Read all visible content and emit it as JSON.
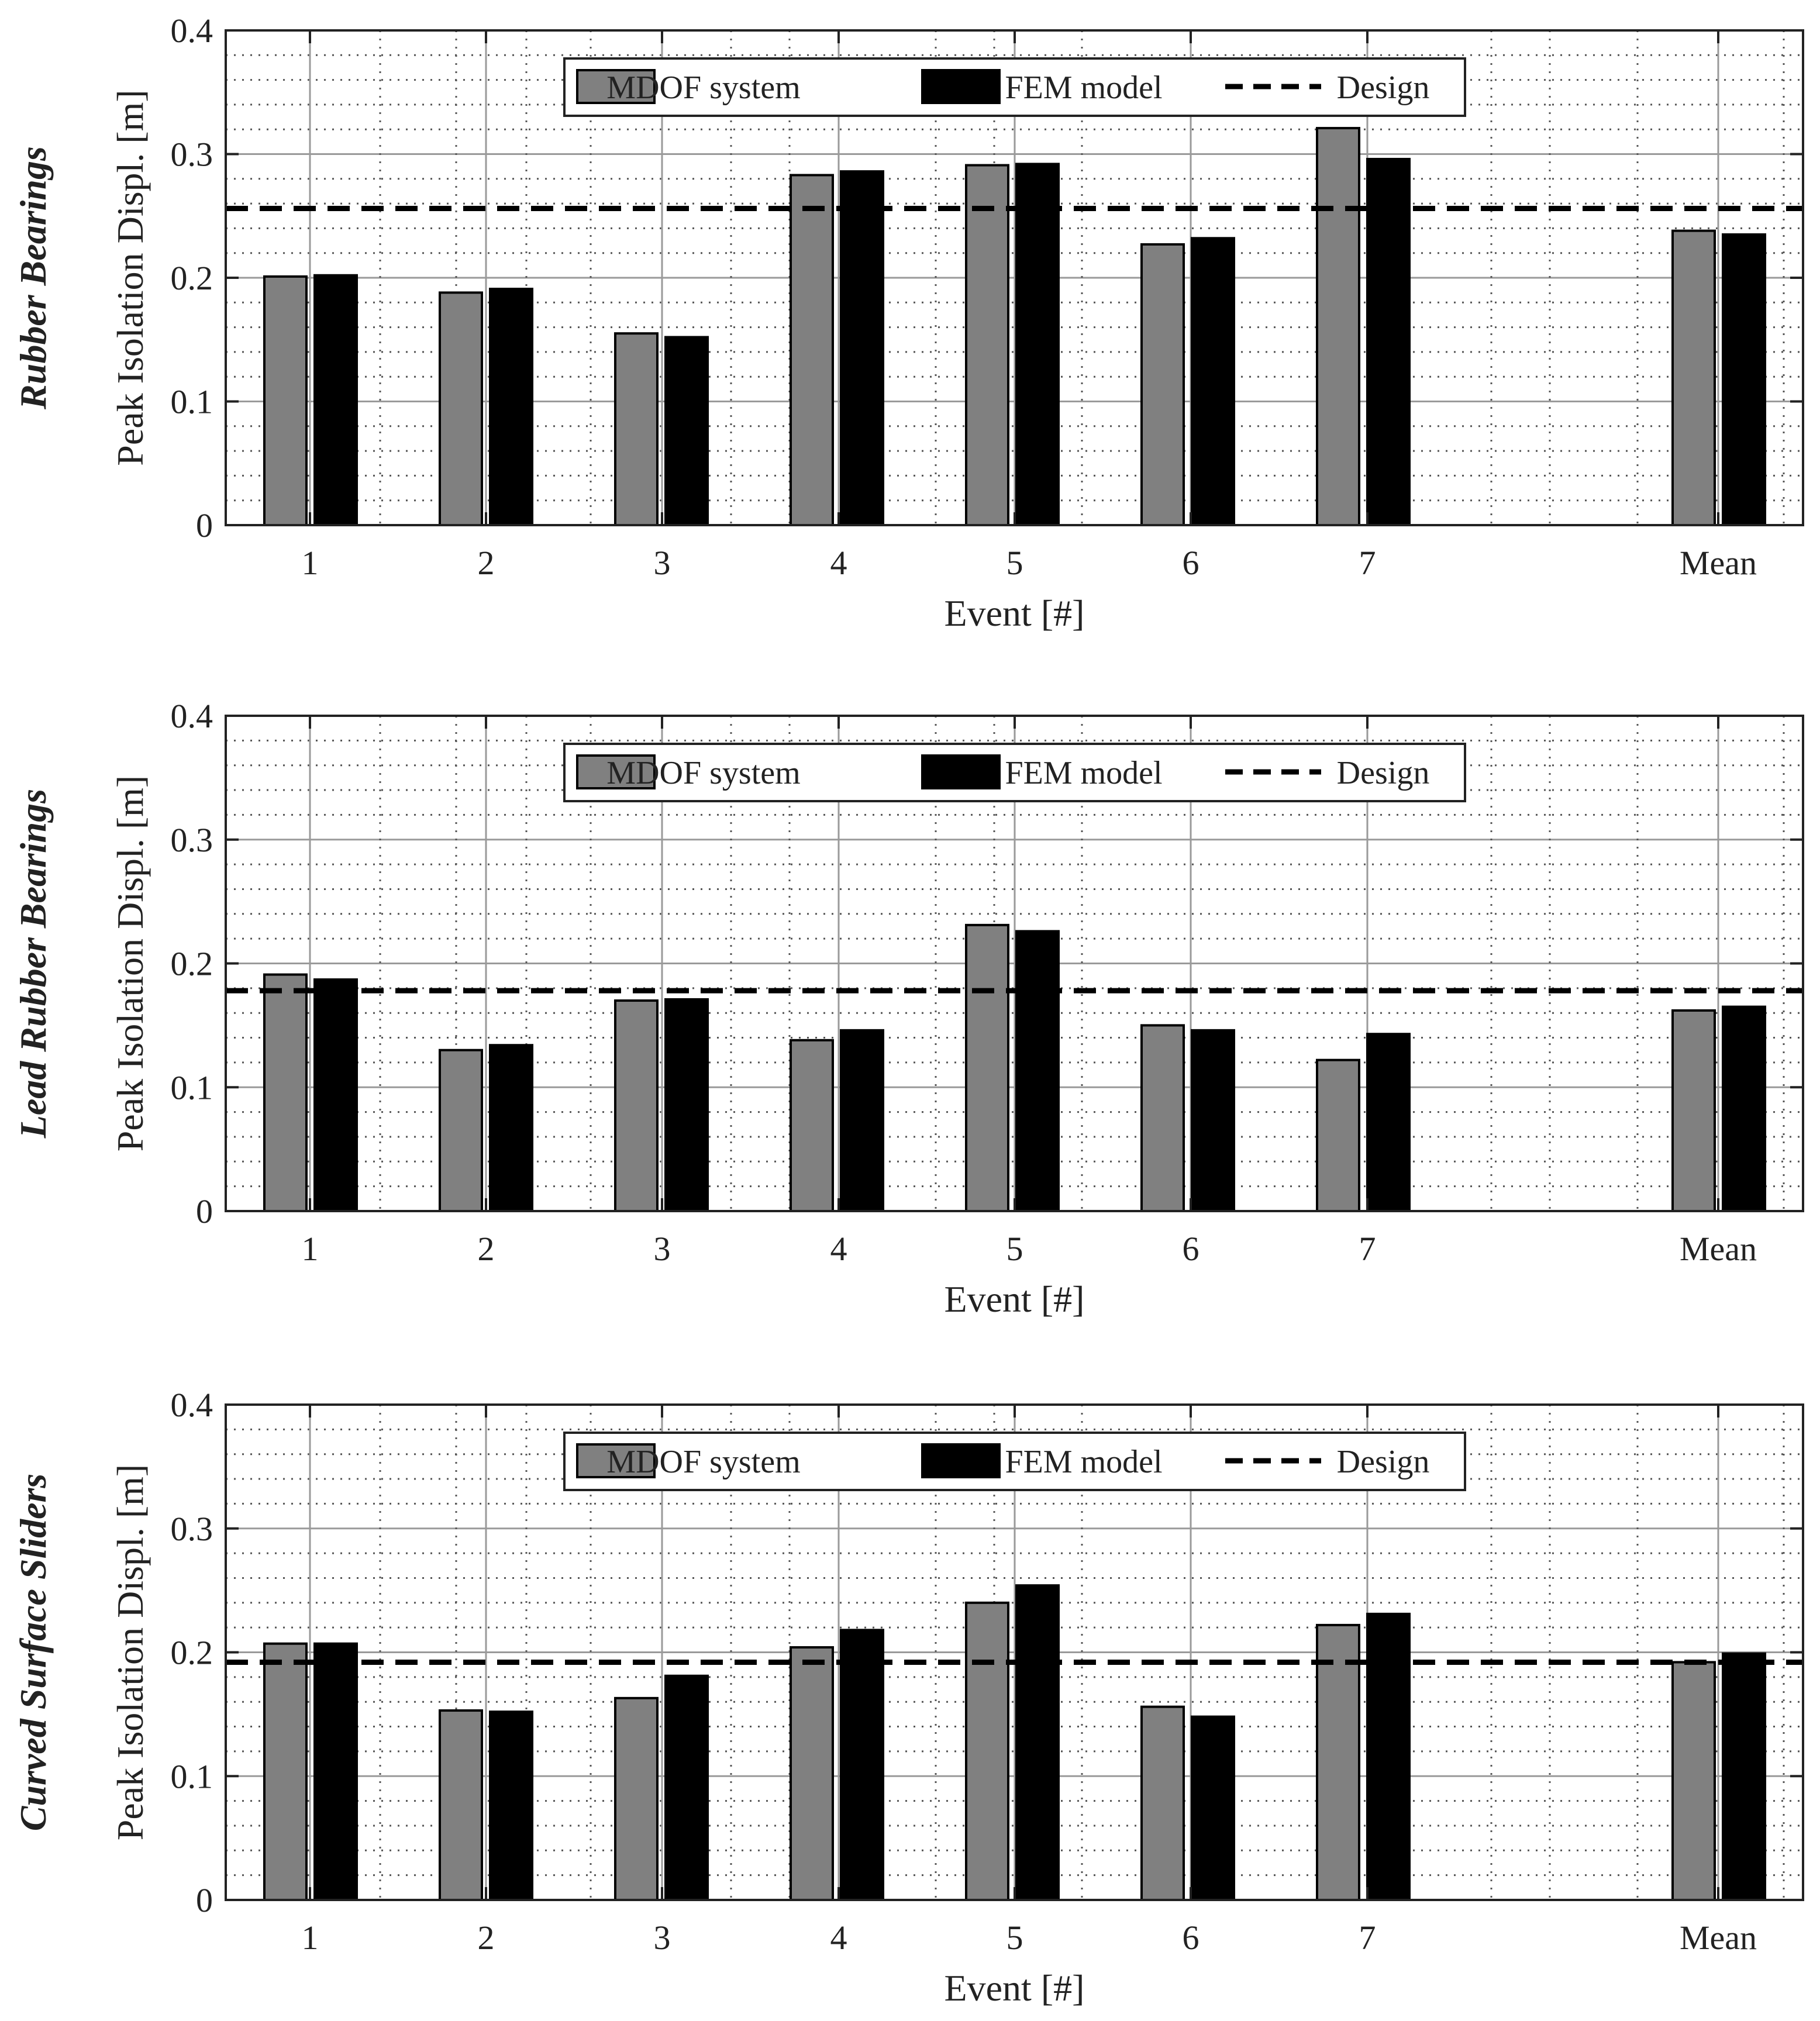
{
  "figure": {
    "x_ticks": [
      "1",
      "2",
      "3",
      "4",
      "5",
      "6",
      "7",
      "Mean"
    ],
    "y_ticks": [
      "0",
      "0.1",
      "0.2",
      "0.3",
      "0.4"
    ],
    "xlabel": "Event [#]",
    "ylabel": "Peak Isolation Displ. [m]",
    "legend": {
      "mdof": "MDOF system",
      "fem": "FEM model",
      "design": "Design"
    },
    "colors": {
      "mdof": "#808080",
      "fem": "#000000",
      "design": "#000000"
    }
  },
  "chart_data": [
    {
      "type": "bar",
      "title": "Rubber Bearings",
      "categories": [
        "1",
        "2",
        "3",
        "4",
        "5",
        "6",
        "7",
        "Mean"
      ],
      "series": [
        {
          "name": "MDOF system",
          "values": [
            0.201,
            0.188,
            0.155,
            0.283,
            0.291,
            0.227,
            0.321,
            0.238
          ]
        },
        {
          "name": "FEM model",
          "values": [
            0.202,
            0.191,
            0.152,
            0.286,
            0.292,
            0.232,
            0.296,
            0.235
          ]
        }
      ],
      "design": 0.256,
      "xlabel": "Event [#]",
      "ylabel": "Peak Isolation Displ. [m]",
      "ylim": [
        0,
        0.4
      ],
      "legend_position": "top-center"
    },
    {
      "type": "bar",
      "title": "Lead Rubber Bearings",
      "categories": [
        "1",
        "2",
        "3",
        "4",
        "5",
        "6",
        "7",
        "Mean"
      ],
      "series": [
        {
          "name": "MDOF system",
          "values": [
            0.191,
            0.13,
            0.17,
            0.138,
            0.231,
            0.15,
            0.122,
            0.162
          ]
        },
        {
          "name": "FEM model",
          "values": [
            0.187,
            0.134,
            0.171,
            0.146,
            0.226,
            0.146,
            0.143,
            0.165
          ]
        }
      ],
      "design": 0.178,
      "xlabel": "Event [#]",
      "ylabel": "Peak Isolation Displ. [m]",
      "ylim": [
        0,
        0.4
      ],
      "legend_position": "top-center"
    },
    {
      "type": "bar",
      "title": "Curved Surface Sliders",
      "categories": [
        "1",
        "2",
        "3",
        "4",
        "5",
        "6",
        "7",
        "Mean"
      ],
      "series": [
        {
          "name": "MDOF system",
          "values": [
            0.207,
            0.153,
            0.163,
            0.204,
            0.24,
            0.156,
            0.222,
            0.192
          ]
        },
        {
          "name": "FEM model",
          "values": [
            0.207,
            0.152,
            0.181,
            0.218,
            0.254,
            0.148,
            0.231,
            0.199
          ]
        }
      ],
      "design": 0.192,
      "xlabel": "Event [#]",
      "ylabel": "Peak Isolation Displ. [m]",
      "ylim": [
        0,
        0.4
      ],
      "legend_position": "top-center"
    }
  ]
}
